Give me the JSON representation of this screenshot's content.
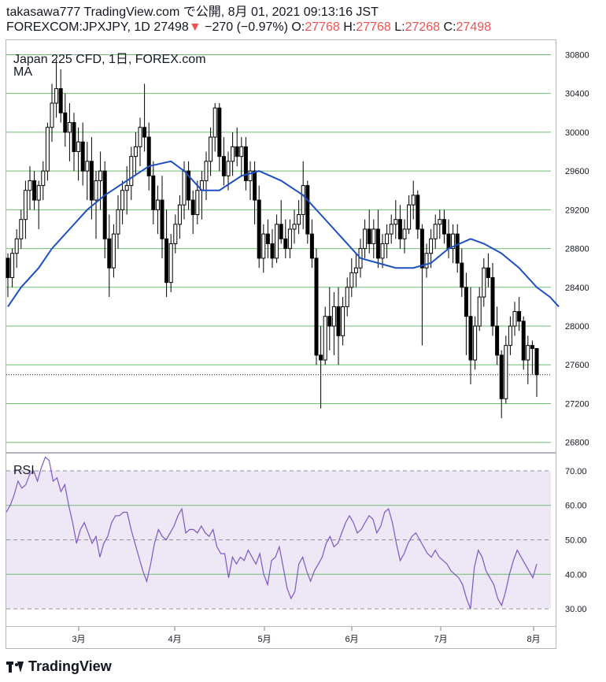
{
  "header": {
    "line1": "takasawa777 TradingView.com で公開, 8月 01, 2021 09:13:16 JST",
    "symbol": "FOREXCOM:JPXJPY, 1D",
    "last": "27498",
    "arrow": "▼",
    "change": "−270 (−0.97%)",
    "o_label": "O:",
    "o_value": "27768",
    "h_label": "H:",
    "h_value": "27768",
    "l_label": "L:",
    "l_value": "27268",
    "c_label": "C:",
    "c_value": "27498"
  },
  "main_legend": {
    "title": "Japan 225 CFD, 1日, FOREX.com",
    "indicator": "MA"
  },
  "rsi_legend": {
    "title": "RSI"
  },
  "logo_text": "TradingView",
  "colors": {
    "up_candle": "#ffffff",
    "down_candle": "#000000",
    "wick": "#000000",
    "ma_line": "#1e4fc2",
    "rsi_line": "#7e57c2",
    "rsi_band": "#ede7f6",
    "grid_main": "#4caf50",
    "grid_rsi": "#9e9e9e"
  },
  "chart_data": [
    {
      "type": "candlestick",
      "title": "Japan 225 CFD, 1日, FOREX.com",
      "y_ticks": [
        26800,
        27200,
        27600,
        28000,
        28400,
        28800,
        29200,
        29600,
        30000,
        30400,
        30800
      ],
      "ylim": [
        26700,
        30950
      ],
      "x_ticks": [
        "3月",
        "4月",
        "5月",
        "6月",
        "7月",
        "8月"
      ],
      "last_price_line": 27498,
      "candles": [
        [
          28700,
          28750,
          28300,
          28500
        ],
        [
          28500,
          28800,
          28400,
          28750
        ],
        [
          28750,
          29000,
          28600,
          28900
        ],
        [
          28900,
          29200,
          28800,
          29100
        ],
        [
          29100,
          29500,
          28900,
          29400
        ],
        [
          29400,
          29650,
          29200,
          29500
        ],
        [
          29500,
          29600,
          29200,
          29300
        ],
        [
          29300,
          29500,
          29000,
          29450
        ],
        [
          29450,
          29700,
          29300,
          29600
        ],
        [
          29600,
          30100,
          29500,
          30050
        ],
        [
          30050,
          30500,
          29900,
          30300
        ],
        [
          30300,
          30750,
          30150,
          30450
        ],
        [
          30450,
          30650,
          30100,
          30200
        ],
        [
          30200,
          30400,
          29850,
          30000
        ],
        [
          30000,
          30300,
          29700,
          30100
        ],
        [
          30100,
          30200,
          29600,
          29800
        ],
        [
          29800,
          30050,
          29500,
          29900
        ],
        [
          29900,
          30100,
          29450,
          29600
        ],
        [
          29600,
          29900,
          29300,
          29700
        ],
        [
          29700,
          29950,
          29100,
          29300
        ],
        [
          29300,
          29600,
          28900,
          29500
        ],
        [
          29500,
          29800,
          29200,
          29600
        ],
        [
          29600,
          29700,
          28700,
          28900
        ],
        [
          28900,
          29150,
          28300,
          28600
        ],
        [
          28600,
          29050,
          28500,
          28950
        ],
        [
          28950,
          29350,
          28800,
          29200
        ],
        [
          29200,
          29500,
          29050,
          29400
        ],
        [
          29400,
          29650,
          29150,
          29450
        ],
        [
          29450,
          29850,
          29300,
          29750
        ],
        [
          29750,
          30000,
          29550,
          29850
        ],
        [
          29850,
          30150,
          29650,
          30050
        ],
        [
          30050,
          30500,
          29800,
          29950
        ],
        [
          29950,
          30100,
          29400,
          29550
        ],
        [
          29550,
          29700,
          29050,
          29200
        ],
        [
          29200,
          29450,
          28950,
          29300
        ],
        [
          29300,
          29550,
          28700,
          28900
        ],
        [
          28900,
          29200,
          28300,
          28450
        ],
        [
          28450,
          28950,
          28350,
          28850
        ],
        [
          28850,
          29150,
          28750,
          29050
        ],
        [
          29050,
          29350,
          28900,
          29250
        ],
        [
          29250,
          29700,
          29100,
          29600
        ],
        [
          29600,
          29700,
          29200,
          29300
        ],
        [
          29300,
          29400,
          28950,
          29150
        ],
        [
          29150,
          29500,
          29050,
          29400
        ],
        [
          29400,
          29600,
          29100,
          29500
        ],
        [
          29500,
          29800,
          29300,
          29700
        ],
        [
          29700,
          30050,
          29550,
          29950
        ],
        [
          29950,
          30300,
          29800,
          30250
        ],
        [
          30250,
          30300,
          29600,
          29750
        ],
        [
          29750,
          29950,
          29450,
          29550
        ],
        [
          29550,
          29800,
          29400,
          29700
        ],
        [
          29700,
          30000,
          29550,
          29850
        ],
        [
          29850,
          30050,
          29650,
          29750
        ],
        [
          29750,
          29950,
          29550,
          29850
        ],
        [
          29850,
          29950,
          29400,
          29500
        ],
        [
          29500,
          29700,
          29300,
          29600
        ],
        [
          29600,
          29700,
          29050,
          29300
        ],
        [
          29300,
          29450,
          28600,
          28700
        ],
        [
          28700,
          29050,
          28550,
          28950
        ],
        [
          28950,
          29100,
          28700,
          28850
        ],
        [
          28850,
          29000,
          28600,
          28700
        ],
        [
          28700,
          29150,
          28650,
          29050
        ],
        [
          29050,
          29300,
          28850,
          28900
        ],
        [
          28900,
          29100,
          28700,
          28800
        ],
        [
          28800,
          29100,
          28700,
          29000
        ],
        [
          29000,
          29200,
          28850,
          29050
        ],
        [
          29050,
          29300,
          28950,
          29150
        ],
        [
          29150,
          29700,
          29000,
          29450
        ],
        [
          29450,
          29500,
          28850,
          28950
        ],
        [
          28950,
          29100,
          28600,
          28700
        ],
        [
          28700,
          28800,
          27600,
          27700
        ],
        [
          27700,
          28000,
          27150,
          27650
        ],
        [
          27650,
          28200,
          27600,
          28100
        ],
        [
          28100,
          28400,
          27750,
          28000
        ],
        [
          28000,
          28350,
          27700,
          28200
        ],
        [
          28200,
          28400,
          27600,
          27900
        ],
        [
          27900,
          28300,
          27800,
          28200
        ],
        [
          28200,
          28500,
          28100,
          28400
        ],
        [
          28400,
          28700,
          28300,
          28550
        ],
        [
          28550,
          28750,
          28400,
          28600
        ],
        [
          28600,
          28900,
          28500,
          28800
        ],
        [
          28800,
          29100,
          28700,
          29000
        ],
        [
          29000,
          29200,
          28750,
          28850
        ],
        [
          28850,
          29100,
          28700,
          29000
        ],
        [
          29000,
          29200,
          28600,
          28700
        ],
        [
          28700,
          28950,
          28600,
          28850
        ],
        [
          28850,
          29050,
          28700,
          28950
        ],
        [
          28950,
          29150,
          28850,
          29050
        ],
        [
          29050,
          29300,
          28900,
          29100
        ],
        [
          29100,
          29250,
          28800,
          28900
        ],
        [
          28900,
          29100,
          28750,
          29000
        ],
        [
          29000,
          29350,
          28950,
          29250
        ],
        [
          29250,
          29500,
          29100,
          29350
        ],
        [
          29350,
          29400,
          28900,
          29000
        ],
        [
          29000,
          29050,
          27800,
          28600
        ],
        [
          28600,
          28850,
          28500,
          28750
        ],
        [
          28750,
          29000,
          28600,
          28900
        ],
        [
          28900,
          29150,
          28800,
          29050
        ],
        [
          29050,
          29200,
          28900,
          29100
        ],
        [
          29100,
          29200,
          28850,
          28950
        ],
        [
          28950,
          29100,
          28700,
          28800
        ],
        [
          28800,
          29050,
          28650,
          28950
        ],
        [
          28950,
          29050,
          28550,
          28650
        ],
        [
          28650,
          28800,
          28300,
          28400
        ],
        [
          28400,
          28550,
          27700,
          28100
        ],
        [
          28100,
          28400,
          27400,
          27650
        ],
        [
          27650,
          28100,
          27550,
          28000
        ],
        [
          28000,
          28400,
          27950,
          28300
        ],
        [
          28300,
          28700,
          28200,
          28600
        ],
        [
          28600,
          28750,
          28400,
          28500
        ],
        [
          28500,
          28650,
          27900,
          28000
        ],
        [
          28000,
          28200,
          27600,
          27700
        ],
        [
          27700,
          27750,
          27050,
          27250
        ],
        [
          27250,
          27900,
          27200,
          27800
        ],
        [
          27800,
          28100,
          27700,
          28000
        ],
        [
          28000,
          28250,
          27900,
          28150
        ],
        [
          28150,
          28300,
          27950,
          28050
        ],
        [
          28050,
          28100,
          27550,
          27650
        ],
        [
          27650,
          27900,
          27400,
          27800
        ],
        [
          27800,
          27850,
          27500,
          27768
        ],
        [
          27768,
          27768,
          27268,
          27498
        ]
      ],
      "ma": [
        [
          0,
          28200
        ],
        [
          3,
          28400
        ],
        [
          7,
          28600
        ],
        [
          10,
          28800
        ],
        [
          14,
          29000
        ],
        [
          18,
          29200
        ],
        [
          22,
          29350
        ],
        [
          27,
          29500
        ],
        [
          32,
          29650
        ],
        [
          37,
          29700
        ],
        [
          40,
          29600
        ],
        [
          44,
          29400
        ],
        [
          48,
          29400
        ],
        [
          53,
          29550
        ],
        [
          57,
          29600
        ],
        [
          62,
          29500
        ],
        [
          67,
          29350
        ],
        [
          71,
          29150
        ],
        [
          76,
          28900
        ],
        [
          80,
          28700
        ],
        [
          84,
          28650
        ],
        [
          88,
          28600
        ],
        [
          92,
          28600
        ],
        [
          96,
          28650
        ],
        [
          100,
          28800
        ],
        [
          105,
          28900
        ],
        [
          108,
          28850
        ],
        [
          112,
          28750
        ],
        [
          116,
          28600
        ],
        [
          120,
          28400
        ],
        [
          123,
          28300
        ],
        [
          125,
          28200
        ]
      ]
    },
    {
      "type": "line",
      "title": "RSI",
      "y_ticks": [
        30.0,
        40.0,
        50.0,
        60.0,
        70.0
      ],
      "ylim": [
        25,
        75
      ],
      "band": [
        30,
        70
      ],
      "values": [
        58,
        60,
        63,
        67,
        65,
        66,
        69,
        70,
        67,
        71,
        74,
        73,
        67,
        68,
        64,
        66,
        60,
        55,
        49,
        53,
        55,
        52,
        49,
        51,
        45,
        49,
        51,
        55,
        57,
        57,
        58,
        58,
        53,
        49,
        45,
        41,
        38,
        43,
        49,
        53,
        51,
        50,
        52,
        54,
        57,
        59,
        52,
        53,
        53,
        52,
        54,
        52,
        51,
        53,
        48,
        46,
        46,
        39,
        45,
        43,
        45,
        44,
        47,
        45,
        43,
        46,
        40,
        37,
        44,
        45,
        48,
        42,
        36,
        33,
        35,
        43,
        45,
        41,
        38,
        41,
        43,
        45,
        49,
        51,
        48,
        49,
        52,
        55,
        57,
        55,
        52,
        53,
        55,
        57,
        56,
        52,
        54,
        58,
        59,
        55,
        49,
        44,
        46,
        49,
        51,
        52,
        50,
        48,
        46,
        45,
        47,
        45,
        44,
        43,
        41,
        40,
        39,
        37,
        33,
        30,
        42,
        47,
        45,
        41,
        39,
        37,
        33,
        31,
        35,
        40,
        44,
        47,
        45,
        43,
        41,
        39,
        43
      ]
    }
  ]
}
